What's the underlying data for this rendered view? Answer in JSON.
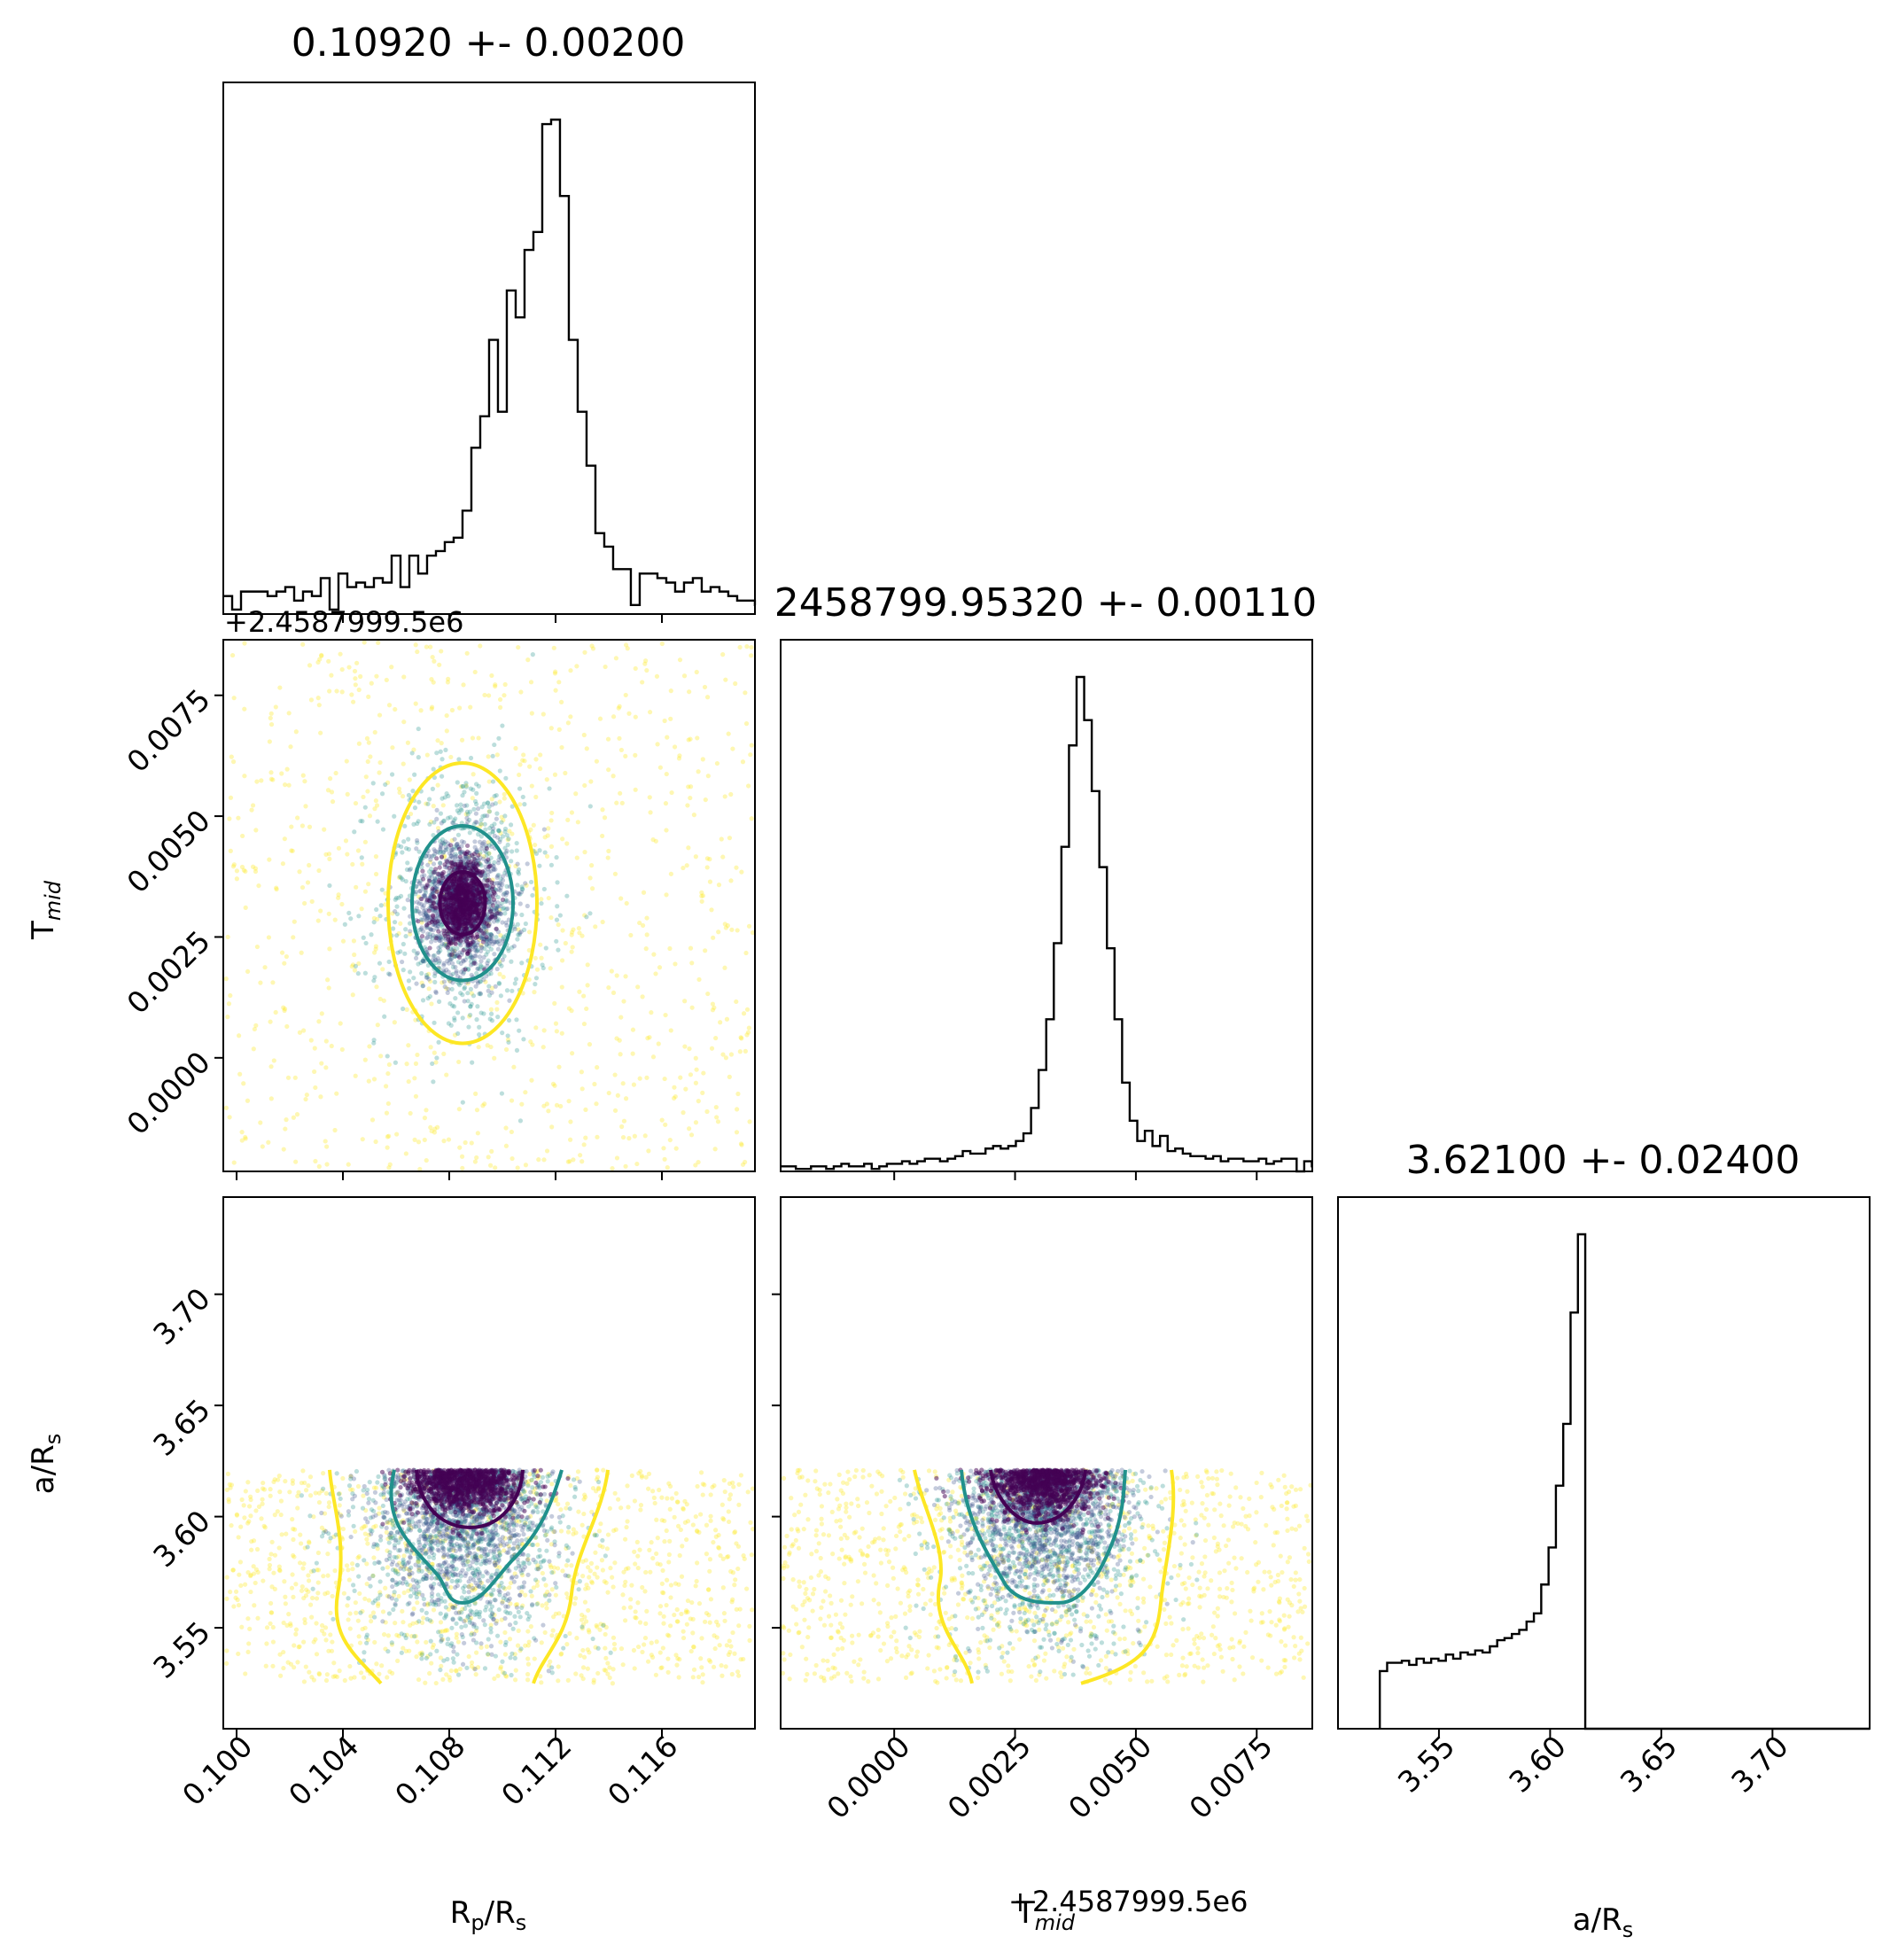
{
  "chart_data": [
    {
      "type": "histogram",
      "parameter": "Rp/Rs",
      "title": "0.10920 +- 0.00200",
      "x": {
        "range": [
          0.0995,
          0.1195
        ],
        "ticks": [
          0.1,
          0.104,
          0.108,
          0.112,
          0.116
        ],
        "tick_labels": [
          "0.100",
          "0.104",
          "0.108",
          "0.112",
          "0.116"
        ],
        "tick_labels_visible": false
      },
      "bin_start": 0.0995,
      "bin_width": 0.0003333,
      "counts": [
        4,
        1,
        5,
        5,
        5,
        4,
        5,
        6,
        3,
        5,
        4,
        8,
        1,
        9,
        6,
        7,
        6,
        8,
        7,
        13,
        6,
        13,
        9,
        13,
        14,
        16,
        17,
        23,
        37,
        44,
        61,
        45,
        72,
        66,
        81,
        85,
        109,
        110,
        93,
        61,
        45,
        33,
        18,
        15,
        10,
        10,
        2,
        9,
        9,
        8,
        7,
        5,
        7,
        8,
        5,
        6,
        5,
        4,
        3,
        3,
        2,
        3,
        2,
        4,
        2,
        3,
        3,
        2,
        2,
        3
      ]
    },
    {
      "type": "histogram",
      "parameter": "Tmid",
      "title": "2458799.95320 +- 0.00110",
      "x": {
        "range": [
          -0.00235,
          0.00865
        ],
        "offset": 2458799.95,
        "ticks": [
          0.0,
          0.0025,
          0.005,
          0.0075
        ],
        "tick_labels": [
          "0.0000",
          "0.0025",
          "0.0050",
          "0.0075"
        ],
        "tick_labels_visible": false
      },
      "bin_start": -0.00235,
      "bin_width": 0.000157,
      "counts": [
        2,
        2,
        1,
        1,
        2,
        2,
        1,
        2,
        3,
        2,
        2,
        3,
        1,
        2,
        3,
        3,
        4,
        3,
        4,
        5,
        5,
        4,
        5,
        6,
        8,
        7,
        7,
        9,
        10,
        9,
        10,
        12,
        15,
        25,
        40,
        60,
        90,
        128,
        168,
        195,
        178,
        150,
        120,
        88,
        60,
        35,
        20,
        12,
        16,
        10,
        14,
        8,
        9,
        7,
        6,
        6,
        5,
        6,
        4,
        5,
        5,
        4,
        4,
        5,
        3,
        4,
        5,
        5,
        0,
        4,
        2,
        3,
        1,
        4
      ]
    },
    {
      "type": "histogram",
      "parameter": "a/Rs",
      "title": "3.62100 +- 0.02400",
      "x": {
        "range": [
          3.5046,
          3.7437
        ],
        "ticks": [
          3.55,
          3.6,
          3.65,
          3.7
        ],
        "tick_labels": [
          "3.55",
          "3.60",
          "3.65",
          "3.70"
        ],
        "label": "a/Rs"
      },
      "bin_start": 3.5234,
      "bin_width": 0.0033,
      "counts": [
        28,
        32,
        32,
        33,
        31,
        34,
        32,
        34,
        33,
        36,
        34,
        37,
        36,
        38,
        37,
        40,
        43,
        44,
        46,
        48,
        52,
        56,
        70,
        88,
        118,
        148,
        202,
        240,
        0,
        0,
        0,
        0,
        0,
        0,
        0,
        0,
        0,
        0,
        0,
        0,
        0,
        0,
        0,
        0,
        0,
        0,
        0,
        0,
        0,
        0,
        0,
        0,
        0,
        0,
        0,
        0,
        0,
        0,
        0,
        0,
        0,
        0,
        0,
        0,
        0,
        0,
        0
      ]
    },
    {
      "type": "scatter",
      "x_parameter": "Rp/Rs",
      "y_parameter": "Tmid",
      "y": {
        "range": [
          -0.00235,
          0.00865
        ],
        "offset_text": "+2.4587999.5e6",
        "ticks": [
          0.0,
          0.0025,
          0.005,
          0.0075
        ],
        "tick_labels": [
          "0.0000",
          "0.0025",
          "0.0050",
          "0.0075"
        ],
        "label": "Tmid"
      },
      "center": {
        "x": 0.1085,
        "y": 0.0032
      },
      "contours": [
        {
          "level": "inner",
          "rx": 0.00085,
          "ry": 0.00065
        },
        {
          "level": "middle",
          "rx": 0.0019,
          "ry": 0.0016
        },
        {
          "level": "outer",
          "rx": 0.0028,
          "ry": 0.0029
        }
      ],
      "colors": [
        "#440154",
        "#21918c",
        "#fde725"
      ]
    },
    {
      "type": "scatter",
      "x_parameter": "Rp/Rs",
      "y_parameter": "a/Rs",
      "x": {
        "label": "Rp/Rs",
        "ticks": [
          0.1,
          0.104,
          0.108,
          0.112,
          0.116
        ],
        "tick_labels": [
          "0.100",
          "0.104",
          "0.108",
          "0.112",
          "0.116"
        ]
      },
      "y": {
        "range": [
          3.5046,
          3.7437
        ],
        "ticks": [
          3.55,
          3.6,
          3.65,
          3.7
        ],
        "tick_labels": [
          "3.55",
          "3.60",
          "3.65",
          "3.70"
        ],
        "label": "a/Rs"
      },
      "upper_cutoff": 3.621,
      "lower_bound": 3.525,
      "center_x": 0.1085,
      "colors": [
        "#440154",
        "#21918c",
        "#fde725"
      ]
    },
    {
      "type": "scatter",
      "x_parameter": "Tmid",
      "y_parameter": "a/Rs",
      "x": {
        "label": "Tmid",
        "offset_text": "+2.4587999.5e6",
        "ticks": [
          0.0,
          0.0025,
          0.005,
          0.0075
        ],
        "tick_labels": [
          "0.0000",
          "0.0025",
          "0.0050",
          "0.0075"
        ]
      },
      "upper_cutoff": 3.621,
      "lower_bound": 3.525,
      "center_x": 0.0031,
      "colors": [
        "#440154",
        "#21918c",
        "#fde725"
      ]
    }
  ],
  "labels": {
    "rp_rs": "R_p/R_s",
    "tmid": "T_mid",
    "a_rs": "a/R_s",
    "offset": "+2.4587999.5e6"
  }
}
